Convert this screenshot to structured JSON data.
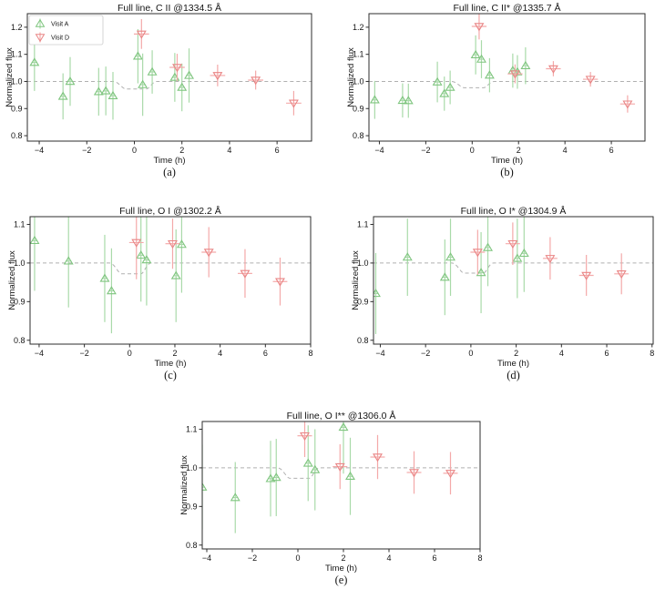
{
  "figure": {
    "background": "#ffffff",
    "colors": {
      "green_edge": "#7fc57f",
      "green_err": "#a9daa9",
      "red_edge": "#e98585",
      "red_err": "#f4a9a9",
      "model": "#b0b0b0",
      "spine": "#2e2e2e",
      "text": "#151515",
      "legend_border": "#cccccc"
    },
    "marker_glyphs": {
      "visit_a": "triangle-up-icon",
      "visit_d": "triangle-down-icon"
    }
  },
  "chart_data": [
    {
      "id": "a",
      "type": "scatter",
      "panel_label": "(a)",
      "title": "Full line, C II @1334.5 Å",
      "xlabel": "Time (h)",
      "ylabel": "Normalized flux",
      "xlim": [
        -4.5,
        7.45
      ],
      "ylim": [
        0.78,
        1.25
      ],
      "xticks": [
        -4,
        -2,
        0,
        2,
        4,
        6
      ],
      "xtick_labels": [
        "−4",
        "−2",
        "0",
        "2",
        "4",
        "6"
      ],
      "yticks": [
        0.8,
        0.9,
        1.0,
        1.1,
        1.2
      ],
      "ytick_labels": [
        "0.8",
        "0.9",
        "1.0",
        "1.1",
        "1.2"
      ],
      "grid": false,
      "legend_position": "upper left",
      "legend": {
        "items": [
          {
            "label": "Visit A"
          },
          {
            "label": "Visit D"
          }
        ]
      },
      "model": {
        "baseline": 1.0,
        "dip": 0.972,
        "t1": -0.9,
        "t2": -0.35,
        "t3": 0.5,
        "t4": 0.95
      },
      "series": [
        {
          "name": "Visit A",
          "marker": "triangle-up",
          "color_key": "green",
          "xerr": 0.12,
          "points": [
            [
              -4.2,
              1.07,
              0.105
            ],
            [
              -3.0,
              0.945,
              0.085
            ],
            [
              -2.7,
              1.0,
              0.09
            ],
            [
              -1.5,
              0.962,
              0.088
            ],
            [
              -1.2,
              0.965,
              0.09
            ],
            [
              -0.9,
              0.947,
              0.088
            ],
            [
              0.15,
              1.093,
              0.1
            ],
            [
              0.35,
              0.988,
              0.115
            ],
            [
              0.75,
              1.035,
              0.08
            ],
            [
              1.7,
              1.015,
              0.09
            ],
            [
              2.0,
              0.978,
              0.088
            ],
            [
              2.3,
              1.022,
              0.1
            ]
          ]
        },
        {
          "name": "Visit D",
          "marker": "triangle-down",
          "color_key": "red",
          "xerr": 0.32,
          "points": [
            [
              0.3,
              1.175,
              0.055
            ],
            [
              1.8,
              1.052,
              0.05
            ],
            [
              3.5,
              1.022,
              0.04
            ],
            [
              5.1,
              1.005,
              0.035
            ],
            [
              6.7,
              0.92,
              0.045
            ]
          ]
        }
      ]
    },
    {
      "id": "b",
      "type": "scatter",
      "panel_label": "(b)",
      "title": "Full line, C II* @1335.7 Å",
      "xlabel": "Time (h)",
      "ylabel": "Normalized flux",
      "xlim": [
        -4.45,
        7.45
      ],
      "ylim": [
        0.78,
        1.25
      ],
      "xticks": [
        -4,
        -2,
        0,
        2,
        4,
        6
      ],
      "xtick_labels": [
        "−4",
        "−2",
        "0",
        "2",
        "4",
        "6"
      ],
      "yticks": [
        0.8,
        0.9,
        1.0,
        1.1,
        1.2
      ],
      "ytick_labels": [
        "0.8",
        "0.9",
        "1.0",
        "1.1",
        "1.2"
      ],
      "grid": false,
      "model": {
        "baseline": 1.0,
        "dip": 0.977,
        "t1": -0.9,
        "t2": -0.35,
        "t3": 0.5,
        "t4": 0.95
      },
      "series": [
        {
          "name": "Visit A",
          "marker": "triangle-up",
          "color_key": "green",
          "xerr": 0.12,
          "points": [
            [
              -4.2,
              0.932,
              0.07
            ],
            [
              -3.0,
              0.93,
              0.063
            ],
            [
              -2.75,
              0.929,
              0.063
            ],
            [
              -1.5,
              0.998,
              0.075
            ],
            [
              -1.2,
              0.955,
              0.063
            ],
            [
              -0.95,
              0.978,
              0.062
            ],
            [
              0.15,
              1.098,
              0.072
            ],
            [
              0.4,
              1.082,
              0.07
            ],
            [
              0.75,
              1.023,
              0.063
            ],
            [
              1.75,
              1.04,
              0.063
            ],
            [
              1.95,
              1.035,
              0.062
            ],
            [
              2.3,
              1.058,
              0.068
            ]
          ]
        },
        {
          "name": "Visit D",
          "marker": "triangle-down",
          "color_key": "red",
          "xerr": 0.32,
          "points": [
            [
              0.3,
              1.203,
              0.048
            ],
            [
              1.85,
              1.028,
              0.035
            ],
            [
              3.5,
              1.047,
              0.028
            ],
            [
              5.1,
              1.008,
              0.027
            ],
            [
              6.7,
              0.917,
              0.032
            ]
          ]
        }
      ]
    },
    {
      "id": "c",
      "type": "scatter",
      "panel_label": "(c)",
      "title": "Full line, O I @1302.2 Å",
      "xlabel": "Time (h)",
      "ylabel": "Normalized flux",
      "xlim": [
        -4.4,
        8.0
      ],
      "ylim": [
        0.79,
        1.12
      ],
      "xticks": [
        -4,
        -2,
        0,
        2,
        4,
        6,
        8
      ],
      "xtick_labels": [
        "−4",
        "−2",
        "0",
        "2",
        "4",
        "6",
        "8"
      ],
      "yticks": [
        0.8,
        0.9,
        1.0,
        1.1
      ],
      "ytick_labels": [
        "0.8",
        "0.9",
        "1.0",
        "1.1"
      ],
      "grid": false,
      "model": {
        "baseline": 1.0,
        "dip": 0.972,
        "t1": -0.9,
        "t2": -0.35,
        "t3": 0.5,
        "t4": 0.95
      },
      "series": [
        {
          "name": "Visit A",
          "marker": "triangle-up",
          "color_key": "green",
          "xerr": 0.12,
          "points": [
            [
              -4.2,
              1.058,
              0.13
            ],
            [
              -2.7,
              1.005,
              0.12
            ],
            [
              -1.1,
              0.96,
              0.113
            ],
            [
              -0.8,
              0.928,
              0.11
            ],
            [
              0.5,
              1.02,
              0.12
            ],
            [
              0.75,
              1.008,
              0.118
            ],
            [
              2.05,
              0.967,
              0.12
            ],
            [
              2.3,
              1.048,
              0.125
            ]
          ]
        },
        {
          "name": "Visit D",
          "marker": "triangle-down",
          "color_key": "red",
          "xerr": 0.32,
          "points": [
            [
              0.3,
              1.053,
              0.095
            ],
            [
              1.9,
              1.05,
              0.065
            ],
            [
              3.5,
              1.028,
              0.065
            ],
            [
              5.1,
              0.973,
              0.063
            ],
            [
              6.65,
              0.952,
              0.062
            ]
          ]
        }
      ]
    },
    {
      "id": "d",
      "type": "scatter",
      "panel_label": "(d)",
      "title": "Full line, O I* @1304.9 Å",
      "xlabel": "Time (h)",
      "ylabel": "Normalized flux",
      "xlim": [
        -4.3,
        8.05
      ],
      "ylim": [
        0.79,
        1.12
      ],
      "xticks": [
        -4,
        -2,
        0,
        2,
        4,
        6,
        8
      ],
      "xtick_labels": [
        "−4",
        "−2",
        "0",
        "2",
        "4",
        "6",
        "8"
      ],
      "yticks": [
        0.8,
        0.9,
        1.0,
        1.1
      ],
      "ytick_labels": [
        "0.8",
        "0.9",
        "1.0",
        "1.1"
      ],
      "grid": false,
      "model": {
        "baseline": 1.0,
        "dip": 0.974,
        "t1": -0.85,
        "t2": -0.3,
        "t3": 0.55,
        "t4": 1.0
      },
      "series": [
        {
          "name": "Visit A",
          "marker": "triangle-up",
          "color_key": "green",
          "xerr": 0.12,
          "points": [
            [
              -4.2,
              0.921,
              0.105
            ],
            [
              -2.8,
              1.015,
              0.1
            ],
            [
              -1.15,
              0.963,
              0.098
            ],
            [
              -0.9,
              1.015,
              0.1
            ],
            [
              0.45,
              0.975,
              0.105
            ],
            [
              0.75,
              1.04,
              0.1
            ],
            [
              2.05,
              1.012,
              0.103
            ],
            [
              2.35,
              1.025,
              0.1
            ]
          ]
        },
        {
          "name": "Visit D",
          "marker": "triangle-down",
          "color_key": "red",
          "xerr": 0.32,
          "points": [
            [
              0.3,
              1.028,
              0.058
            ],
            [
              1.85,
              1.05,
              0.055
            ],
            [
              3.5,
              1.012,
              0.055
            ],
            [
              5.1,
              0.968,
              0.053
            ],
            [
              6.65,
              0.972,
              0.053
            ]
          ]
        }
      ]
    },
    {
      "id": "e",
      "type": "scatter",
      "panel_label": "(e)",
      "title": "Full line, O I** @1306.0 Å",
      "xlabel": "Time (h)",
      "ylabel": "Normalized flux",
      "xlim": [
        -4.2,
        8.0
      ],
      "ylim": [
        0.79,
        1.12
      ],
      "xticks": [
        -4,
        -2,
        0,
        2,
        4,
        6,
        8
      ],
      "xtick_labels": [
        "−4",
        "−2",
        "0",
        "2",
        "4",
        "6",
        "8"
      ],
      "yticks": [
        0.8,
        0.9,
        1.0,
        1.1
      ],
      "ytick_labels": [
        "0.8",
        "0.9",
        "1.0",
        "1.1"
      ],
      "grid": false,
      "model": {
        "baseline": 1.0,
        "dip": 0.973,
        "t1": -0.9,
        "t2": -0.35,
        "t3": 0.5,
        "t4": 0.95
      },
      "series": [
        {
          "name": "Visit A",
          "marker": "triangle-up",
          "color_key": "green",
          "xerr": 0.12,
          "points": [
            [
              -4.2,
              0.95,
              0.11
            ],
            [
              -2.75,
              0.923,
              0.092
            ],
            [
              -1.2,
              0.972,
              0.098
            ],
            [
              -0.95,
              0.975,
              0.1
            ],
            [
              0.45,
              1.012,
              0.098
            ],
            [
              0.75,
              0.995,
              0.105
            ],
            [
              2.0,
              1.105,
              0.12
            ],
            [
              2.3,
              0.978,
              0.1
            ]
          ]
        },
        {
          "name": "Visit D",
          "marker": "triangle-down",
          "color_key": "red",
          "xerr": 0.32,
          "points": [
            [
              0.3,
              1.083,
              0.055
            ],
            [
              1.85,
              1.003,
              0.058
            ],
            [
              3.5,
              1.028,
              0.057
            ],
            [
              5.1,
              0.988,
              0.055
            ],
            [
              6.7,
              0.986,
              0.055
            ]
          ]
        }
      ]
    }
  ]
}
